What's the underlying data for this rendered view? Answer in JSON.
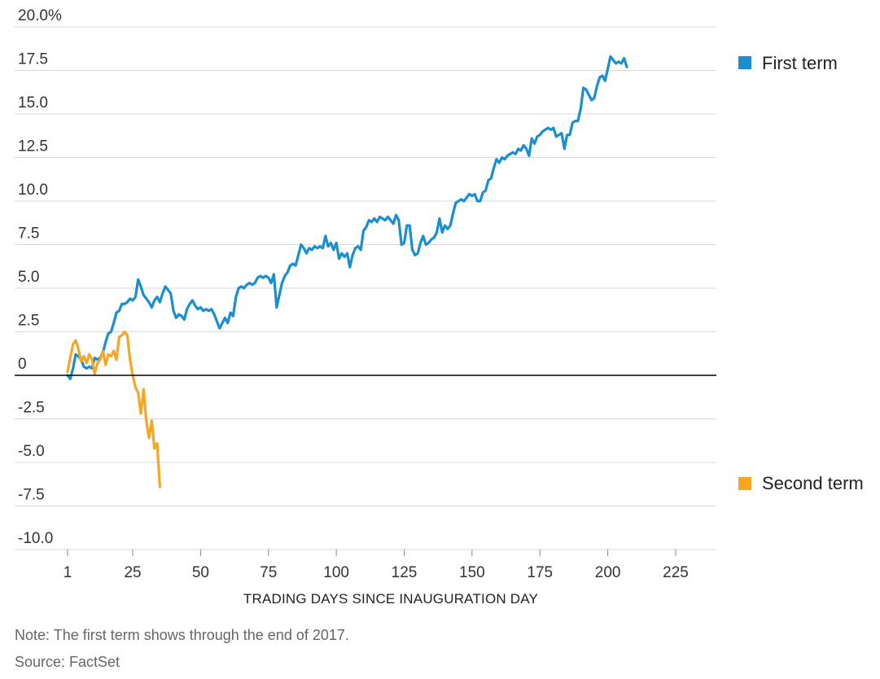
{
  "chart_data": {
    "type": "line",
    "xlabel": "TRADING DAYS SINCE INAUGURATION DAY",
    "ylabel": "",
    "xlim": [
      1,
      240
    ],
    "ylim": [
      -10,
      20
    ],
    "x_ticks": [
      1,
      25,
      50,
      75,
      100,
      125,
      150,
      175,
      200,
      225
    ],
    "x_tick_labels": [
      "1",
      "25",
      "50",
      "75",
      "100",
      "125",
      "150",
      "175",
      "200",
      "225"
    ],
    "y_ticks": [
      20,
      17.5,
      15,
      12.5,
      10,
      7.5,
      5,
      2.5,
      0,
      -2.5,
      -5,
      -7.5,
      -10
    ],
    "y_tick_labels": [
      "20.0%",
      "17.5",
      "15.0",
      "12.5",
      "10.0",
      "7.5",
      "5.0",
      "2.5",
      "0",
      "-2.5",
      "-5.0",
      "-7.5",
      "-10.0"
    ],
    "grid": true,
    "legend_position": "right",
    "series": [
      {
        "name": "First term",
        "color": "#1a8fd0",
        "points": [
          [
            1,
            0
          ],
          [
            2,
            -0.2
          ],
          [
            3,
            0.4
          ],
          [
            4,
            1.2
          ],
          [
            5,
            1.1
          ],
          [
            6,
            0.9
          ],
          [
            7,
            0.5
          ],
          [
            8,
            0.4
          ],
          [
            9,
            0.5
          ],
          [
            10,
            0.4
          ],
          [
            11,
            1.0
          ],
          [
            12,
            0.9
          ],
          [
            13,
            1.0
          ],
          [
            14,
            1.3
          ],
          [
            15,
            1.9
          ],
          [
            16,
            2.4
          ],
          [
            17,
            2.5
          ],
          [
            18,
            3.0
          ],
          [
            19,
            3.6
          ],
          [
            20,
            3.7
          ],
          [
            21,
            4.1
          ],
          [
            22,
            4.1
          ],
          [
            23,
            4.2
          ],
          [
            24,
            4.4
          ],
          [
            25,
            4.3
          ],
          [
            26,
            4.5
          ],
          [
            27,
            5.5
          ],
          [
            28,
            5.1
          ],
          [
            29,
            4.6
          ],
          [
            30,
            4.4
          ],
          [
            31,
            4.2
          ],
          [
            32,
            3.9
          ],
          [
            33,
            4.3
          ],
          [
            34,
            4.5
          ],
          [
            35,
            4.2
          ],
          [
            36,
            4.7
          ],
          [
            37,
            5.1
          ],
          [
            38,
            4.9
          ],
          [
            39,
            4.7
          ],
          [
            40,
            3.7
          ],
          [
            41,
            3.3
          ],
          [
            42,
            3.5
          ],
          [
            43,
            3.4
          ],
          [
            44,
            3.2
          ],
          [
            45,
            3.8
          ],
          [
            46,
            4.1
          ],
          [
            47,
            4.3
          ],
          [
            48,
            4.0
          ],
          [
            49,
            3.8
          ],
          [
            50,
            3.9
          ],
          [
            51,
            3.7
          ],
          [
            52,
            3.8
          ],
          [
            53,
            3.7
          ],
          [
            54,
            3.8
          ],
          [
            55,
            3.5
          ],
          [
            56,
            3.1
          ],
          [
            57,
            2.7
          ],
          [
            58,
            3.0
          ],
          [
            59,
            3.3
          ],
          [
            60,
            3.0
          ],
          [
            61,
            3.6
          ],
          [
            62,
            3.4
          ],
          [
            63,
            4.5
          ],
          [
            64,
            5.0
          ],
          [
            65,
            5.1
          ],
          [
            66,
            5.0
          ],
          [
            67,
            5.2
          ],
          [
            68,
            5.3
          ],
          [
            69,
            5.2
          ],
          [
            70,
            5.3
          ],
          [
            71,
            5.6
          ],
          [
            72,
            5.7
          ],
          [
            73,
            5.6
          ],
          [
            74,
            5.7
          ],
          [
            75,
            5.6
          ],
          [
            76,
            5.3
          ],
          [
            77,
            5.8
          ],
          [
            78,
            3.9
          ],
          [
            79,
            4.6
          ],
          [
            80,
            5.3
          ],
          [
            81,
            5.7
          ],
          [
            82,
            5.9
          ],
          [
            83,
            6.3
          ],
          [
            84,
            6.4
          ],
          [
            85,
            6.3
          ],
          [
            86,
            6.9
          ],
          [
            87,
            7.5
          ],
          [
            88,
            7.3
          ],
          [
            89,
            7.0
          ],
          [
            90,
            7.3
          ],
          [
            91,
            7.2
          ],
          [
            92,
            7.4
          ],
          [
            93,
            7.3
          ],
          [
            94,
            7.4
          ],
          [
            95,
            7.3
          ],
          [
            96,
            8.0
          ],
          [
            97,
            7.4
          ],
          [
            98,
            7.6
          ],
          [
            99,
            7.2
          ],
          [
            100,
            7.6
          ],
          [
            101,
            6.7
          ],
          [
            102,
            7.0
          ],
          [
            103,
            6.8
          ],
          [
            104,
            7.0
          ],
          [
            105,
            6.2
          ],
          [
            106,
            6.9
          ],
          [
            107,
            7.3
          ],
          [
            108,
            7.4
          ],
          [
            109,
            7.2
          ],
          [
            110,
            8.3
          ],
          [
            111,
            8.5
          ],
          [
            112,
            8.9
          ],
          [
            113,
            8.8
          ],
          [
            114,
            9.0
          ],
          [
            115,
            8.8
          ],
          [
            116,
            9.1
          ],
          [
            117,
            9.0
          ],
          [
            118,
            8.9
          ],
          [
            119,
            9.1
          ],
          [
            120,
            8.9
          ],
          [
            121,
            8.7
          ],
          [
            122,
            9.2
          ],
          [
            123,
            8.9
          ],
          [
            124,
            7.5
          ],
          [
            125,
            7.6
          ],
          [
            126,
            8.6
          ],
          [
            127,
            8.6
          ],
          [
            128,
            7.2
          ],
          [
            129,
            6.9
          ],
          [
            130,
            7.0
          ],
          [
            131,
            7.6
          ],
          [
            132,
            8.0
          ],
          [
            133,
            7.5
          ],
          [
            134,
            7.6
          ],
          [
            135,
            7.8
          ],
          [
            136,
            7.9
          ],
          [
            137,
            8.2
          ],
          [
            138,
            9.0
          ],
          [
            139,
            8.2
          ],
          [
            140,
            8.6
          ],
          [
            141,
            8.4
          ],
          [
            142,
            8.6
          ],
          [
            143,
            9.3
          ],
          [
            144,
            9.9
          ],
          [
            145,
            10.0
          ],
          [
            146,
            10.1
          ],
          [
            147,
            10.0
          ],
          [
            148,
            10.2
          ],
          [
            149,
            10.4
          ],
          [
            150,
            10.3
          ],
          [
            151,
            10.4
          ],
          [
            152,
            10.0
          ],
          [
            153,
            10.0
          ],
          [
            154,
            10.5
          ],
          [
            155,
            10.6
          ],
          [
            156,
            11.2
          ],
          [
            157,
            11.3
          ],
          [
            158,
            11.9
          ],
          [
            159,
            12.4
          ],
          [
            160,
            12.2
          ],
          [
            161,
            12.5
          ],
          [
            162,
            12.4
          ],
          [
            163,
            12.6
          ],
          [
            164,
            12.7
          ],
          [
            165,
            12.8
          ],
          [
            166,
            12.7
          ],
          [
            167,
            13.0
          ],
          [
            168,
            12.9
          ],
          [
            169,
            13.2
          ],
          [
            170,
            13.0
          ],
          [
            171,
            12.6
          ],
          [
            172,
            13.6
          ],
          [
            173,
            13.3
          ],
          [
            174,
            13.7
          ],
          [
            175,
            13.8
          ],
          [
            176,
            14.0
          ],
          [
            177,
            14.1
          ],
          [
            178,
            14.2
          ],
          [
            179,
            14.1
          ],
          [
            180,
            14.2
          ],
          [
            181,
            13.7
          ],
          [
            182,
            13.8
          ],
          [
            183,
            13.9
          ],
          [
            184,
            13.0
          ],
          [
            185,
            13.8
          ],
          [
            186,
            13.8
          ],
          [
            187,
            14.5
          ],
          [
            188,
            14.6
          ],
          [
            189,
            14.6
          ],
          [
            190,
            15.3
          ],
          [
            191,
            16.5
          ],
          [
            192,
            16.4
          ],
          [
            193,
            16.1
          ],
          [
            194,
            15.8
          ],
          [
            195,
            15.9
          ],
          [
            196,
            16.6
          ],
          [
            197,
            17.1
          ],
          [
            198,
            17.2
          ],
          [
            199,
            16.9
          ],
          [
            200,
            17.6
          ],
          [
            201,
            18.3
          ],
          [
            202,
            18.1
          ],
          [
            203,
            17.9
          ],
          [
            204,
            18.0
          ],
          [
            205,
            17.9
          ],
          [
            206,
            18.2
          ],
          [
            207,
            17.7
          ]
        ]
      },
      {
        "name": "Second term",
        "color": "#f6a623",
        "points": [
          [
            1,
            0.2
          ],
          [
            2,
            1.0
          ],
          [
            3,
            1.8
          ],
          [
            4,
            2.0
          ],
          [
            5,
            1.5
          ],
          [
            6,
            0.8
          ],
          [
            7,
            1.1
          ],
          [
            8,
            0.7
          ],
          [
            9,
            1.2
          ],
          [
            10,
            0.9
          ],
          [
            11,
            0.1
          ],
          [
            12,
            0.7
          ],
          [
            13,
            0.9
          ],
          [
            14,
            1.4
          ],
          [
            15,
            0.6
          ],
          [
            16,
            1.2
          ],
          [
            17,
            1.1
          ],
          [
            18,
            1.4
          ],
          [
            19,
            0.9
          ],
          [
            20,
            2.2
          ],
          [
            21,
            2.3
          ],
          [
            22,
            2.5
          ],
          [
            23,
            2.3
          ],
          [
            24,
            0.9
          ],
          [
            25,
            0.0
          ],
          [
            26,
            -0.7
          ],
          [
            27,
            -1.0
          ],
          [
            28,
            -2.2
          ],
          [
            29,
            -0.8
          ],
          [
            30,
            -2.6
          ],
          [
            31,
            -3.6
          ],
          [
            32,
            -2.6
          ],
          [
            33,
            -4.2
          ],
          [
            34,
            -3.9
          ],
          [
            35,
            -6.4
          ]
        ]
      }
    ]
  },
  "footer": {
    "note": "Note: The first term shows through the end of 2017.",
    "source": "Source: FactSet"
  }
}
